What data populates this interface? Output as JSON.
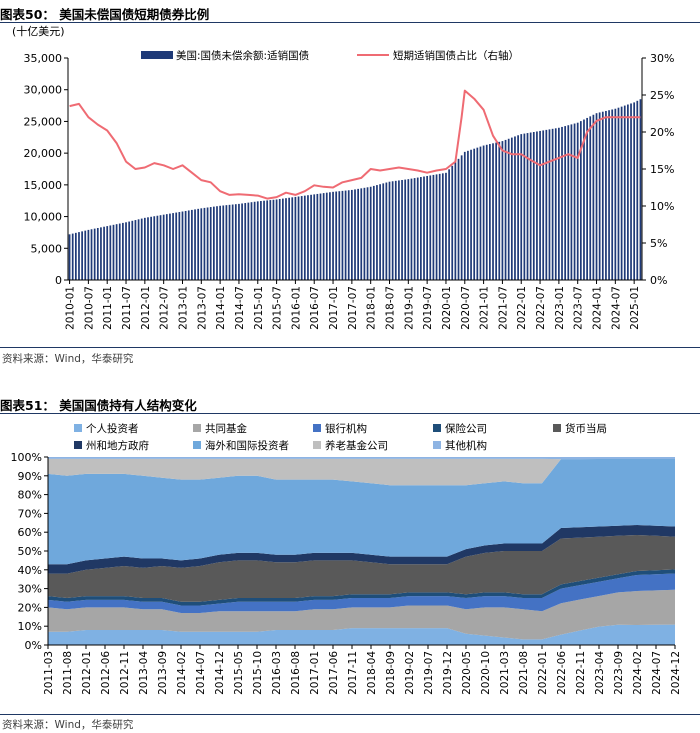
{
  "chart1": {
    "title": "图表50： 美国未偿国债短期债券比例",
    "unit_label": "(十亿美元)",
    "legend_bar": "美国:国债未偿余额:适销国债",
    "legend_line": "短期适销国债占比（右轴）",
    "left_ticks": [
      "0",
      "5,000",
      "10,000",
      "15,000",
      "20,000",
      "25,000",
      "30,000",
      "35,000"
    ],
    "right_ticks": [
      "0%",
      "5%",
      "10%",
      "15%",
      "20%",
      "25%",
      "30%"
    ],
    "x_ticks": [
      "2010-01",
      "2010-07",
      "2011-01",
      "2011-07",
      "2012-01",
      "2012-07",
      "2013-01",
      "2013-07",
      "2014-01",
      "2014-07",
      "2015-01",
      "2015-07",
      "2016-01",
      "2016-07",
      "2017-01",
      "2017-07",
      "2018-01",
      "2018-07",
      "2019-01",
      "2019-07",
      "2020-01",
      "2020-07",
      "2021-01",
      "2021-07",
      "2022-01",
      "2022-07",
      "2023-01",
      "2023-07",
      "2024-01",
      "2024-07",
      "2025-01"
    ],
    "source": "资料来源：Wind，华泰研究",
    "colors": {
      "bar": "#1f3a78",
      "line": "#ef6b73"
    }
  },
  "chart2": {
    "title": "图表51： 美国国债持有人结构变化",
    "legend_items": [
      "个人投资者",
      "共同基金",
      "银行机构",
      "保险公司",
      "货币当局",
      "州和地方政府",
      "海外和国际投资者",
      "养老基金公司",
      "其他机构"
    ],
    "y_ticks": [
      "0%",
      "10%",
      "20%",
      "30%",
      "40%",
      "50%",
      "60%",
      "70%",
      "80%",
      "90%",
      "100%"
    ],
    "x_ticks": [
      "2011-03",
      "2011-08",
      "2012-01",
      "2012-06",
      "2012-11",
      "2013-04",
      "2013-09",
      "2014-02",
      "2014-07",
      "2014-12",
      "2015-05",
      "2015-10",
      "2016-03",
      "2016-08",
      "2017-01",
      "2017-06",
      "2017-11",
      "2018-04",
      "2018-09",
      "2019-02",
      "2019-07",
      "2019-12",
      "2020-05",
      "2020-10",
      "2021-03",
      "2021-08",
      "2022-01",
      "2022-06",
      "2022-11",
      "2023-04",
      "2023-09",
      "2024-02",
      "2024-07",
      "2024-12"
    ],
    "source": "资料来源：Wind，华泰研究",
    "colors": [
      "#7fb1e3",
      "#a6a6a6",
      "#4472c4",
      "#1f4e79",
      "#595959",
      "#203864",
      "#6fa8dc",
      "#bfbfbf",
      "#8eb4e3"
    ]
  },
  "chart_data": [
    {
      "type": "bar+line",
      "title": "图表50： 美国未偿国债短期债券比例",
      "ylabel": "(十亿美元)",
      "ylim": [
        0,
        35000
      ],
      "y2lim": [
        0,
        30
      ],
      "grid": false,
      "legend_placement": "top",
      "x_start": "2010-01",
      "x_end": "2025-03",
      "series": [
        {
          "name": "美国:国债未偿余额:适销国债",
          "type": "bar",
          "axis": "left",
          "x": [
            "2010-01",
            "2010-07",
            "2011-01",
            "2011-07",
            "2012-01",
            "2012-07",
            "2013-01",
            "2013-07",
            "2014-01",
            "2014-07",
            "2015-01",
            "2015-07",
            "2016-01",
            "2016-07",
            "2017-01",
            "2017-07",
            "2018-01",
            "2018-07",
            "2019-01",
            "2019-07",
            "2020-01",
            "2020-07",
            "2021-01",
            "2021-07",
            "2022-01",
            "2022-07",
            "2023-01",
            "2023-07",
            "2024-01",
            "2024-07",
            "2025-01",
            "2025-03"
          ],
          "values": [
            7200,
            7900,
            8500,
            9100,
            9800,
            10300,
            10800,
            11300,
            11700,
            12000,
            12400,
            12700,
            13100,
            13500,
            13900,
            14200,
            14700,
            15500,
            15900,
            16400,
            16900,
            20200,
            21200,
            21900,
            23000,
            23500,
            24000,
            24800,
            26300,
            27000,
            28000,
            28500
          ]
        },
        {
          "name": "短期适销国债占比（右轴）",
          "type": "line",
          "axis": "right",
          "x": [
            "2010-01",
            "2010-04",
            "2010-07",
            "2010-10",
            "2011-01",
            "2011-04",
            "2011-07",
            "2011-10",
            "2012-01",
            "2012-04",
            "2012-07",
            "2012-10",
            "2013-01",
            "2013-04",
            "2013-07",
            "2013-10",
            "2014-01",
            "2014-04",
            "2014-07",
            "2014-10",
            "2015-01",
            "2015-04",
            "2015-07",
            "2015-10",
            "2016-01",
            "2016-04",
            "2016-07",
            "2016-10",
            "2017-01",
            "2017-04",
            "2017-07",
            "2017-10",
            "2018-01",
            "2018-04",
            "2018-07",
            "2018-10",
            "2019-01",
            "2019-04",
            "2019-07",
            "2019-10",
            "2020-01",
            "2020-04",
            "2020-06",
            "2020-07",
            "2020-10",
            "2021-01",
            "2021-04",
            "2021-07",
            "2021-10",
            "2022-01",
            "2022-04",
            "2022-07",
            "2022-10",
            "2023-01",
            "2023-04",
            "2023-07",
            "2023-10",
            "2024-01",
            "2024-04",
            "2024-07",
            "2024-10",
            "2025-01",
            "2025-03"
          ],
          "values": [
            23.5,
            23.8,
            22.0,
            21.0,
            20.2,
            18.5,
            16.0,
            15.0,
            15.2,
            15.8,
            15.5,
            15.0,
            15.5,
            14.5,
            13.5,
            13.2,
            12.0,
            11.5,
            11.6,
            11.5,
            11.4,
            11.0,
            11.2,
            11.8,
            11.5,
            12.0,
            12.8,
            12.6,
            12.5,
            13.2,
            13.5,
            13.8,
            15.0,
            14.8,
            15.0,
            15.2,
            15.0,
            14.8,
            14.5,
            14.8,
            15.0,
            16.0,
            22.0,
            25.6,
            24.5,
            23.0,
            19.5,
            17.5,
            17.0,
            17.0,
            16.2,
            15.5,
            16.0,
            16.5,
            17.0,
            16.5,
            20.0,
            21.5,
            22.0,
            22.0,
            22.0,
            22.0,
            22.0
          ]
        }
      ]
    },
    {
      "type": "area",
      "stacked": true,
      "percent": true,
      "title": "图表51： 美国国债持有人结构变化",
      "ylim": [
        0,
        100
      ],
      "grid": false,
      "legend_placement": "top",
      "categories": [
        "2011-03",
        "2011-08",
        "2012-01",
        "2012-06",
        "2012-11",
        "2013-04",
        "2013-09",
        "2014-02",
        "2014-07",
        "2014-12",
        "2015-05",
        "2015-10",
        "2016-03",
        "2016-08",
        "2017-01",
        "2017-06",
        "2017-11",
        "2018-04",
        "2018-09",
        "2019-02",
        "2019-07",
        "2019-12",
        "2020-05",
        "2020-10",
        "2021-03",
        "2021-08",
        "2022-01",
        "2022-06",
        "2022-11",
        "2023-04",
        "2023-09",
        "2024-02",
        "2024-07",
        "2024-12"
      ],
      "series": [
        {
          "name": "个人投资者",
          "values": [
            7,
            7,
            8,
            8,
            8,
            8,
            8,
            7,
            7,
            7,
            7,
            7,
            8,
            8,
            8,
            8,
            9,
            9,
            9,
            9,
            9,
            9,
            6,
            5,
            4,
            3,
            3,
            5,
            7,
            9,
            10,
            10,
            10,
            10
          ]
        },
        {
          "name": "共同基金",
          "values": [
            13,
            12,
            12,
            12,
            12,
            11,
            11,
            10,
            10,
            11,
            11,
            11,
            10,
            10,
            11,
            11,
            11,
            11,
            11,
            12,
            12,
            12,
            13,
            15,
            16,
            16,
            15,
            15,
            15,
            15,
            16,
            17,
            17,
            17
          ]
        },
        {
          "name": "银行机构",
          "values": [
            4,
            4,
            4,
            4,
            4,
            4,
            4,
            4,
            4,
            4,
            5,
            5,
            5,
            5,
            5,
            5,
            5,
            5,
            5,
            5,
            5,
            5,
            6,
            6,
            6,
            6,
            7,
            7,
            7,
            7,
            7,
            8,
            8,
            8
          ]
        },
        {
          "name": "保险公司",
          "values": [
            2,
            2,
            2,
            2,
            2,
            2,
            2,
            2,
            2,
            2,
            2,
            2,
            2,
            2,
            2,
            2,
            2,
            2,
            2,
            2,
            2,
            2,
            2,
            2,
            2,
            2,
            2,
            2,
            2,
            2,
            2,
            2,
            2,
            2
          ]
        },
        {
          "name": "货币当局",
          "values": [
            12,
            13,
            14,
            15,
            16,
            16,
            17,
            18,
            19,
            20,
            20,
            20,
            19,
            19,
            19,
            19,
            18,
            17,
            16,
            15,
            15,
            15,
            20,
            21,
            22,
            23,
            23,
            22,
            21,
            20,
            19,
            18,
            17,
            16
          ]
        },
        {
          "name": "州和地方政府",
          "values": [
            5,
            5,
            5,
            5,
            5,
            5,
            4,
            4,
            4,
            4,
            4,
            4,
            4,
            4,
            4,
            4,
            4,
            4,
            4,
            4,
            4,
            4,
            4,
            4,
            4,
            4,
            4,
            5,
            5,
            5,
            5,
            5,
            5,
            5
          ]
        },
        {
          "name": "海外和国际投资者",
          "values": [
            48,
            47,
            46,
            45,
            44,
            44,
            43,
            43,
            42,
            41,
            41,
            41,
            40,
            40,
            39,
            39,
            38,
            38,
            38,
            38,
            38,
            38,
            34,
            33,
            33,
            32,
            32,
            33,
            33,
            33,
            33,
            33,
            33,
            33
          ]
        },
        {
          "name": "养老基金公司",
          "values": [
            8,
            9,
            8,
            8,
            8,
            9,
            10,
            11,
            11,
            10,
            9,
            9,
            11,
            11,
            11,
            11,
            12,
            13,
            14,
            14,
            14,
            14,
            14,
            13,
            12,
            13,
            13,
            0,
            0,
            0,
            0,
            0,
            0,
            0
          ]
        },
        {
          "name": "其他机构",
          "values": [
            1,
            1,
            1,
            1,
            1,
            1,
            1,
            1,
            1,
            1,
            1,
            1,
            1,
            1,
            1,
            1,
            1,
            1,
            1,
            1,
            1,
            1,
            1,
            1,
            1,
            1,
            1,
            1,
            1,
            1,
            1,
            1,
            1,
            1
          ]
        }
      ]
    }
  ]
}
